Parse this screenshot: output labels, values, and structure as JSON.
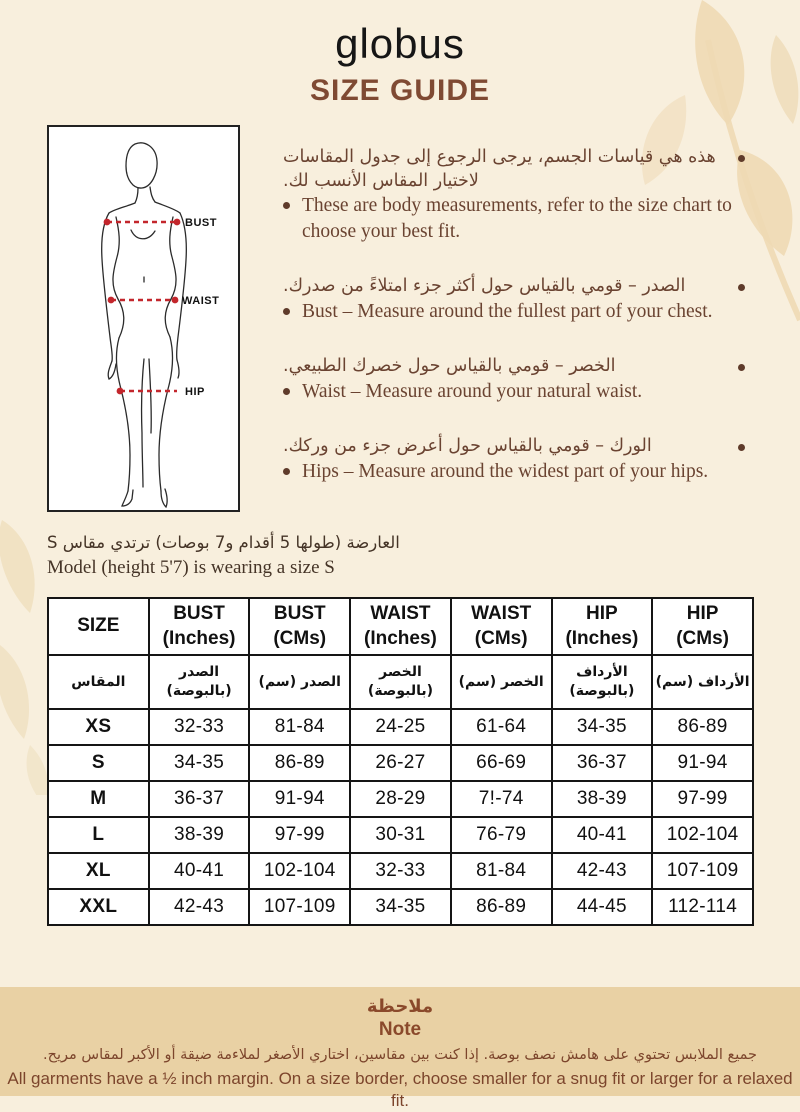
{
  "header": {
    "logo": "globus",
    "title": "SIZE GUIDE"
  },
  "diagram": {
    "labels": {
      "bust": "BUST",
      "waist": "WAIST",
      "hip": "HIP"
    }
  },
  "instructions": [
    {
      "ar": "هذه هي قياسات الجسم، يرجى الرجوع إلى جدول المقاسات لاختيار المقاس الأنسب لك.",
      "en": "These are body measurements, refer to the size chart to choose your best fit."
    },
    {
      "ar": "الصدر – قومي بالقياس حول أكثر جزء امتلاءً من صدرك.",
      "en": "Bust – Measure around the fullest part of your chest."
    },
    {
      "ar": "الخصر – قومي بالقياس حول خصرك الطبيعي.",
      "en": "Waist – Measure around your natural waist."
    },
    {
      "ar": "الورك – قومي بالقياس حول أعرض جزء من وركك.",
      "en": "Hips – Measure around the widest part of your hips."
    }
  ],
  "model_note": {
    "ar": "العارضة (طولها 5 أقدام و7 بوصات) ترتدي مقاس S",
    "en": "Model (height 5'7) is wearing a size S"
  },
  "size_table": {
    "headers_en": [
      "SIZE",
      "BUST\n(Inches)",
      "BUST\n(CMs)",
      "WAIST\n(Inches)",
      "WAIST\n(CMs)",
      "HIP\n(Inches)",
      "HIP\n(CMs)"
    ],
    "headers_ar": [
      "المقاس",
      "الصدر\n(بالبوصة)",
      "الصدر (سم)",
      "الخصر\n(بالبوصة)",
      "الخصر (سم)",
      "الأرداف\n(بالبوصة)",
      "الأرداف (سم)"
    ],
    "rows": [
      {
        "size": "XS",
        "values": [
          "32-33",
          "81-84",
          "24-25",
          "61-64",
          "34-35",
          "86-89"
        ]
      },
      {
        "size": "S",
        "values": [
          "34-35",
          "86-89",
          "26-27",
          "66-69",
          "36-37",
          "91-94"
        ]
      },
      {
        "size": "M",
        "values": [
          "36-37",
          "91-94",
          "28-29",
          "7!-74",
          "38-39",
          "97-99"
        ]
      },
      {
        "size": "L",
        "values": [
          "38-39",
          "97-99",
          "30-31",
          "76-79",
          "40-41",
          "102-104"
        ]
      },
      {
        "size": "XL",
        "values": [
          "40-41",
          "102-104",
          "32-33",
          "81-84",
          "42-43",
          "107-109"
        ]
      },
      {
        "size": "XXL",
        "values": [
          "42-43",
          "107-109",
          "34-35",
          "86-89",
          "44-45",
          "112-114"
        ]
      }
    ]
  },
  "note": {
    "title_ar": "ملاحظة",
    "title_en": "Note",
    "body_ar": "جميع الملابس تحتوي على هامش نصف بوصة. إذا كنت بين مقاسين، اختاري الأصغر لملاءمة ضيقة أو الأكبر لمقاس مريح.",
    "body_en": "All garments have a ½ inch margin. On a size border, choose smaller for a snug fit or larger for a relaxed fit."
  },
  "colors": {
    "background": "#f8efdd",
    "accent_brown": "#7f4a33",
    "text_brown": "#6a4331",
    "note_background": "#e9d1a4",
    "note_text": "#7c452c",
    "measure_red": "#c3262c",
    "leaf_decoration": "#eed9b4",
    "table_border": "#151515"
  }
}
